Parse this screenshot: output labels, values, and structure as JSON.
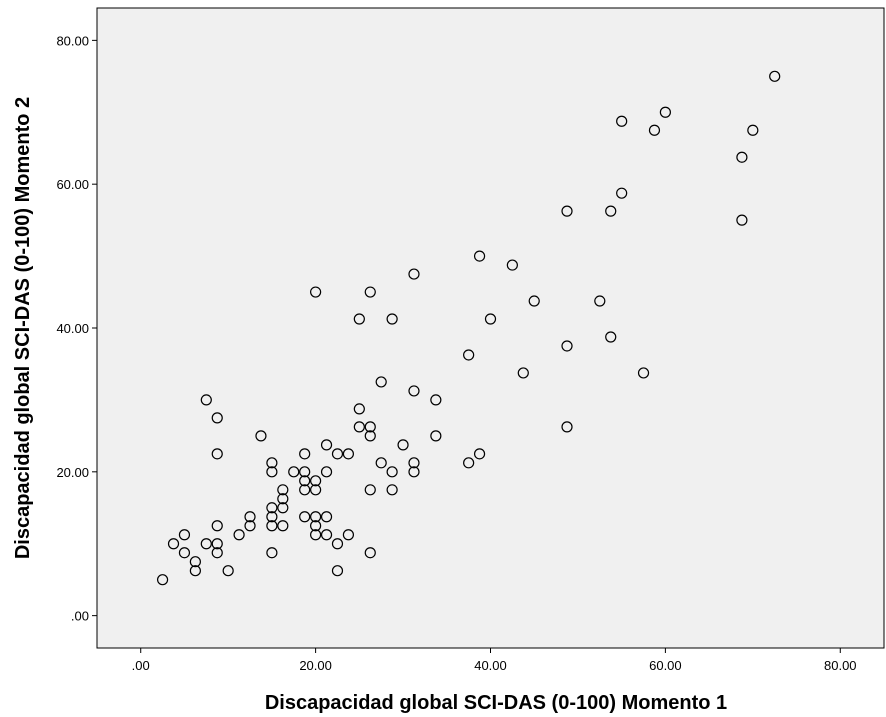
{
  "chart_data": {
    "type": "scatter",
    "title": "",
    "xlabel": "Discapacidad global SCI-DAS (0-100) Momento 1",
    "ylabel": "Discapacidad global SCI-DAS (0-100) Momento 2",
    "xlim": [
      -5,
      85
    ],
    "ylim": [
      -4.5,
      84.5
    ],
    "x_ticks": [
      0,
      20,
      40,
      60,
      80
    ],
    "y_ticks": [
      0,
      20,
      40,
      60,
      80
    ],
    "x_tick_labels": [
      ".00",
      "20.00",
      "40.00",
      "60.00",
      "80.00"
    ],
    "y_tick_labels": [
      ".00",
      "20.00",
      "40.00",
      "60.00",
      "80.00"
    ],
    "grid": false,
    "legend": "none",
    "plot_background": "#f0f0f0",
    "marker": "open-circle",
    "points": [
      [
        2.5,
        5.0
      ],
      [
        3.75,
        10.0
      ],
      [
        5.0,
        8.75
      ],
      [
        5.0,
        11.25
      ],
      [
        6.25,
        6.25
      ],
      [
        6.25,
        7.5
      ],
      [
        7.5,
        30.0
      ],
      [
        7.5,
        10.0
      ],
      [
        8.75,
        27.5
      ],
      [
        8.75,
        22.5
      ],
      [
        8.75,
        12.5
      ],
      [
        8.75,
        10.0
      ],
      [
        8.75,
        8.75
      ],
      [
        10.0,
        6.25
      ],
      [
        11.25,
        11.25
      ],
      [
        12.5,
        13.75
      ],
      [
        12.5,
        12.5
      ],
      [
        13.75,
        25.0
      ],
      [
        15.0,
        21.25
      ],
      [
        15.0,
        20.0
      ],
      [
        15.0,
        15.0
      ],
      [
        15.0,
        13.75
      ],
      [
        15.0,
        12.5
      ],
      [
        15.0,
        8.75
      ],
      [
        16.25,
        17.5
      ],
      [
        16.25,
        16.25
      ],
      [
        16.25,
        15.0
      ],
      [
        16.25,
        12.5
      ],
      [
        17.5,
        20.0
      ],
      [
        18.75,
        22.5
      ],
      [
        18.75,
        20.0
      ],
      [
        18.75,
        18.75
      ],
      [
        18.75,
        17.5
      ],
      [
        18.75,
        13.75
      ],
      [
        20.0,
        45.0
      ],
      [
        20.0,
        18.75
      ],
      [
        20.0,
        17.5
      ],
      [
        20.0,
        13.75
      ],
      [
        20.0,
        12.5
      ],
      [
        20.0,
        11.25
      ],
      [
        21.25,
        23.75
      ],
      [
        21.25,
        20.0
      ],
      [
        21.25,
        13.75
      ],
      [
        21.25,
        11.25
      ],
      [
        22.5,
        22.5
      ],
      [
        22.5,
        10.0
      ],
      [
        22.5,
        6.25
      ],
      [
        23.75,
        22.5
      ],
      [
        23.75,
        11.25
      ],
      [
        25.0,
        41.25
      ],
      [
        25.0,
        28.75
      ],
      [
        25.0,
        26.25
      ],
      [
        26.25,
        45.0
      ],
      [
        26.25,
        26.25
      ],
      [
        26.25,
        25.0
      ],
      [
        26.25,
        17.5
      ],
      [
        26.25,
        8.75
      ],
      [
        27.5,
        32.5
      ],
      [
        27.5,
        21.25
      ],
      [
        28.75,
        41.25
      ],
      [
        28.75,
        20.0
      ],
      [
        28.75,
        17.5
      ],
      [
        30.0,
        23.75
      ],
      [
        31.25,
        47.5
      ],
      [
        31.25,
        31.25
      ],
      [
        31.25,
        21.25
      ],
      [
        31.25,
        20.0
      ],
      [
        33.75,
        30.0
      ],
      [
        33.75,
        25.0
      ],
      [
        37.5,
        36.25
      ],
      [
        37.5,
        21.25
      ],
      [
        38.75,
        50.0
      ],
      [
        38.75,
        22.5
      ],
      [
        40.0,
        41.25
      ],
      [
        42.5,
        48.75
      ],
      [
        43.75,
        33.75
      ],
      [
        45.0,
        43.75
      ],
      [
        48.75,
        56.25
      ],
      [
        48.75,
        37.5
      ],
      [
        48.75,
        26.25
      ],
      [
        52.5,
        43.75
      ],
      [
        53.75,
        56.25
      ],
      [
        53.75,
        38.75
      ],
      [
        55.0,
        68.75
      ],
      [
        55.0,
        58.75
      ],
      [
        57.5,
        33.75
      ],
      [
        58.75,
        67.5
      ],
      [
        60.0,
        70.0
      ],
      [
        68.75,
        63.75
      ],
      [
        68.75,
        55.0
      ],
      [
        70.0,
        67.5
      ],
      [
        72.5,
        75.0
      ]
    ]
  }
}
